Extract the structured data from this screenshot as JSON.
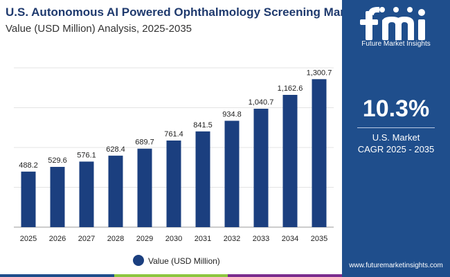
{
  "header": {
    "title": "U.S. Autonomous AI Powered Ophthalmology Screening Market",
    "subtitle": "Value (USD Million) Analysis, 2025-2035"
  },
  "side_panel": {
    "logo_text": "Future Market Insights",
    "cagr_value": "10.3%",
    "cagr_label_line1": "U.S. Market",
    "cagr_label_line2": "CAGR 2025 - 2035",
    "website": "www.futuremarketinsights.com",
    "background_color": "#1f4e8c"
  },
  "chart_data": {
    "type": "bar",
    "categories": [
      "2025",
      "2026",
      "2027",
      "2028",
      "2029",
      "2030",
      "2031",
      "2032",
      "2033",
      "2034",
      "2035"
    ],
    "series": [
      {
        "name": "Value (USD Million)",
        "values": [
          488.2,
          529.6,
          576.1,
          628.4,
          689.7,
          761.4,
          841.5,
          934.8,
          1040.7,
          1162.6,
          1300.7
        ],
        "labels": [
          "488.2",
          "529.6",
          "576.1",
          "628.4",
          "689.7",
          "761.4",
          "841.5",
          "934.8",
          "1,040.7",
          "1,162.6",
          "1,300.7"
        ],
        "color": "#1b3f7f"
      }
    ],
    "ylim": [
      0,
      1400
    ],
    "grid": true,
    "legend_position": "bottom-center"
  },
  "colors": {
    "title": "#1f3a6e",
    "bar": "#1b3f7f",
    "gridline": "#e3e3e3",
    "bottom_bar": [
      "#1f4e8c",
      "#8dc63f",
      "#7b2d8e"
    ]
  }
}
